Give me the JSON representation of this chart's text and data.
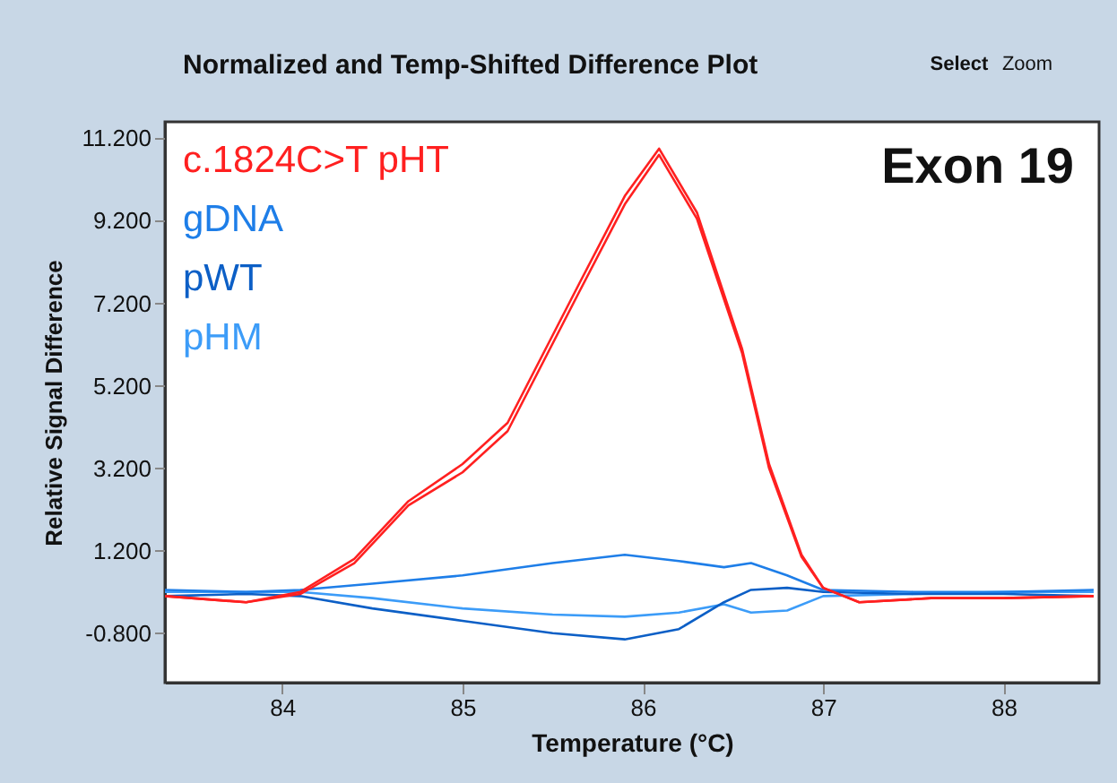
{
  "chart_data": {
    "type": "line",
    "title": "Normalized and Temp-Shifted Difference Plot",
    "xlabel": "Temperature (°C)",
    "ylabel": "Relative Signal Difference",
    "xlim": [
      83.35,
      88.53
    ],
    "xticks": [
      84,
      85,
      86,
      87,
      88
    ],
    "ylim": [
      -2.0,
      11.6
    ],
    "yticks": [
      {
        "value": -0.8,
        "label": "-0.800"
      },
      {
        "value": 1.2,
        "label": "1.200"
      },
      {
        "value": 3.2,
        "label": "3.200"
      },
      {
        "value": 5.2,
        "label": "5.200"
      },
      {
        "value": 7.2,
        "label": "7.200"
      },
      {
        "value": 9.2,
        "label": "9.200"
      },
      {
        "value": 11.2,
        "label": "11.200"
      }
    ],
    "grid": false,
    "legend": "top left",
    "marker": "none",
    "line_style": "solid",
    "annotations": [
      "Exon 19",
      "Select",
      "Zoom"
    ],
    "series": [
      {
        "name": "c.1824C>T pHT",
        "color": "#ff2020",
        "x": [
          83.35,
          83.8,
          84.1,
          84.4,
          84.7,
          85.0,
          85.25,
          85.65,
          85.9,
          86.09,
          86.3,
          86.55,
          86.7,
          86.88,
          87.0,
          87.2,
          87.6,
          88.0,
          88.5
        ],
        "values": [
          0.1,
          -0.05,
          0.2,
          1.0,
          2.4,
          3.3,
          4.3,
          7.7,
          9.8,
          10.95,
          9.4,
          6.1,
          3.3,
          1.1,
          0.3,
          -0.05,
          0.05,
          0.05,
          0.1
        ]
      },
      {
        "color": "#ff2020",
        "x": [
          83.35,
          83.8,
          84.1,
          84.4,
          84.7,
          85.0,
          85.25,
          85.65,
          85.9,
          86.09,
          86.3,
          86.55,
          86.7,
          86.88,
          87.0,
          87.2,
          87.6,
          88.0,
          88.5
        ],
        "values": [
          0.1,
          -0.05,
          0.15,
          0.9,
          2.3,
          3.1,
          4.1,
          7.5,
          9.6,
          10.8,
          9.25,
          6.0,
          3.2,
          1.05,
          0.3,
          -0.05,
          0.05,
          0.05,
          0.1
        ]
      },
      {
        "name": "gDNA",
        "color": "#1e7ee8",
        "x": [
          83.35,
          83.8,
          84.1,
          84.5,
          85.0,
          85.5,
          85.9,
          86.2,
          86.45,
          86.6,
          86.8,
          87.0,
          87.5,
          88.0,
          88.5
        ],
        "values": [
          0.25,
          0.2,
          0.25,
          0.4,
          0.6,
          0.9,
          1.1,
          0.95,
          0.8,
          0.9,
          0.6,
          0.25,
          0.2,
          0.2,
          0.25
        ]
      },
      {
        "name": "pWT",
        "color": "#0c5fc6",
        "x": [
          83.35,
          83.8,
          84.1,
          84.5,
          85.0,
          85.5,
          85.9,
          86.2,
          86.45,
          86.6,
          86.8,
          87.0,
          87.5,
          88.0,
          88.5
        ],
        "values": [
          0.1,
          0.15,
          0.1,
          -0.2,
          -0.5,
          -0.8,
          -0.95,
          -0.7,
          -0.05,
          0.25,
          0.3,
          0.2,
          0.15,
          0.15,
          0.1
        ]
      },
      {
        "name": "pHM",
        "color": "#3c9cf8",
        "x": [
          83.35,
          83.8,
          84.1,
          84.5,
          85.0,
          85.5,
          85.9,
          86.2,
          86.45,
          86.6,
          86.8,
          87.0,
          87.5,
          88.0,
          88.5
        ],
        "values": [
          0.2,
          0.2,
          0.2,
          0.05,
          -0.2,
          -0.35,
          -0.4,
          -0.3,
          -0.1,
          -0.3,
          -0.25,
          0.1,
          0.15,
          0.2,
          0.2
        ]
      }
    ]
  }
}
